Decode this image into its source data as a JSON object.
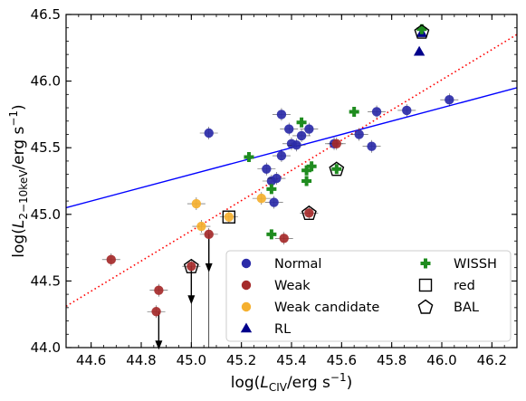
{
  "chart_data": {
    "type": "scatter",
    "xlabel": "log(L_CIV / erg s^-1)",
    "ylabel": "log(L_2-10keV / erg s^-1)",
    "xlim": [
      44.5,
      46.3
    ],
    "ylim": [
      44.0,
      46.5
    ],
    "xticks": [
      "44.6",
      "44.8",
      "45.0",
      "45.2",
      "45.4",
      "45.6",
      "45.8",
      "46.0",
      "46.2"
    ],
    "yticks": [
      "44.0",
      "44.5",
      "45.0",
      "45.5",
      "46.0",
      "46.5"
    ],
    "legend_position": "lower-right",
    "grid": false,
    "colors": {
      "normal": "#2b2ba8",
      "weak": "#a52a2a",
      "weak_candidate": "#f5b02f",
      "rl": "#00008b",
      "wissh": "#1f8c1f",
      "fit_line": "#0000ff",
      "dotted_line": "#ff0000"
    },
    "legend": [
      {
        "label": "Normal",
        "marker": "circle",
        "color": "#2b2ba8"
      },
      {
        "label": "Weak",
        "marker": "circle",
        "color": "#a52a2a"
      },
      {
        "label": "Weak candidate",
        "marker": "circle",
        "color": "#f5b02f"
      },
      {
        "label": "RL",
        "marker": "triangle",
        "color": "#00008b"
      },
      {
        "label": "WISSH",
        "marker": "plus",
        "color": "#1f8c1f"
      },
      {
        "label": "red",
        "marker": "square",
        "color": "#000000"
      },
      {
        "label": "BAL",
        "marker": "pentagon",
        "color": "#000000"
      }
    ],
    "lines": [
      {
        "style": "solid",
        "color": "#0000ff",
        "x": [
          44.5,
          46.3
        ],
        "y": [
          45.05,
          45.95
        ]
      },
      {
        "style": "dotted",
        "color": "#ff0000",
        "x": [
          44.5,
          46.3
        ],
        "y": [
          44.31,
          46.35
        ]
      }
    ],
    "series": [
      {
        "name": "Normal",
        "points": [
          [
            45.07,
            45.61
          ],
          [
            45.3,
            45.34
          ],
          [
            45.32,
            45.25
          ],
          [
            45.33,
            45.09
          ],
          [
            45.34,
            45.27
          ],
          [
            45.36,
            45.44
          ],
          [
            45.36,
            45.75
          ],
          [
            45.39,
            45.64
          ],
          [
            45.4,
            45.53
          ],
          [
            45.42,
            45.52
          ],
          [
            45.44,
            45.59
          ],
          [
            45.47,
            45.64
          ],
          [
            45.57,
            45.53
          ],
          [
            45.67,
            45.6
          ],
          [
            45.72,
            45.51
          ],
          [
            45.74,
            45.77
          ],
          [
            45.86,
            45.78
          ],
          [
            46.03,
            45.86
          ]
        ]
      },
      {
        "name": "Weak",
        "points": [
          [
            44.68,
            44.66
          ],
          [
            44.86,
            44.27
          ],
          [
            44.87,
            44.43
          ],
          [
            45.0,
            44.61
          ],
          [
            45.07,
            44.85
          ],
          [
            45.37,
            44.82
          ],
          [
            45.47,
            45.01
          ],
          [
            45.58,
            45.53
          ]
        ]
      },
      {
        "name": "Weak candidate",
        "points": [
          [
            45.02,
            45.08
          ],
          [
            45.04,
            44.91
          ],
          [
            45.15,
            44.98
          ],
          [
            45.28,
            45.12
          ]
        ]
      },
      {
        "name": "RL",
        "points": [
          [
            45.91,
            46.22
          ],
          [
            45.92,
            46.36
          ]
        ]
      },
      {
        "name": "WISSH",
        "points": [
          [
            45.23,
            45.43
          ],
          [
            45.32,
            44.85
          ],
          [
            45.32,
            45.19
          ],
          [
            45.44,
            45.69
          ],
          [
            45.46,
            45.25
          ],
          [
            45.46,
            45.33
          ],
          [
            45.48,
            45.36
          ],
          [
            45.58,
            45.34
          ],
          [
            45.65,
            45.77
          ],
          [
            45.92,
            46.39
          ]
        ]
      },
      {
        "name": "red",
        "points": [
          [
            45.15,
            44.98
          ]
        ]
      },
      {
        "name": "BAL",
        "points": [
          [
            45.0,
            44.61
          ],
          [
            45.47,
            45.01
          ],
          [
            45.58,
            45.34
          ],
          [
            45.92,
            46.37
          ]
        ]
      }
    ],
    "upper_limits": [
      [
        44.87,
        44.27
      ],
      [
        45.0,
        44.61
      ],
      [
        45.07,
        44.85
      ]
    ]
  }
}
